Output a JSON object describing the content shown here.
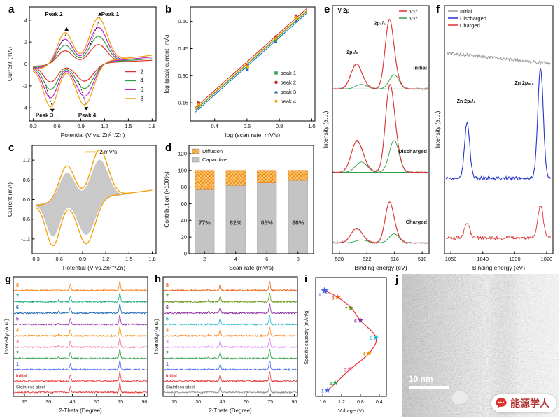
{
  "figure": {
    "background": "#ffffff",
    "watermark": {
      "text": "能源学人",
      "icon_color": "#e03131",
      "text_color": "#b03434"
    }
  },
  "panel_labels": {
    "a": "a",
    "b": "b",
    "c": "c",
    "d": "d",
    "e": "e",
    "f": "f",
    "g": "g",
    "h": "h",
    "i": "i",
    "j": "j"
  },
  "chart_data": [
    {
      "panel": "a",
      "type": "cv",
      "xlabel": "Potential (V vs. Zn²⁺/Zn)",
      "ylabel": "Current (mA)",
      "xlim": [
        0.25,
        1.85
      ],
      "ylim": [
        -5.2,
        5.2
      ],
      "xticks": [
        "0.3",
        "0.6",
        "0.9",
        "1.2",
        "1.5",
        "1.8"
      ],
      "yticks": [
        "-4",
        "-2",
        "0",
        "2",
        "4"
      ],
      "series": [
        {
          "name": "2",
          "color": "#e03131",
          "k": 0.42
        },
        {
          "name": "4",
          "color": "#2f9e44",
          "k": 0.6
        },
        {
          "name": "6",
          "color": "#c026d3",
          "k": 0.79
        },
        {
          "name": "8",
          "color": "#f59f00",
          "k": 1.0
        }
      ],
      "amp": {
        "top": [
          [
            0.7,
            0.1,
            3.0
          ],
          [
            1.12,
            0.11,
            4.0
          ]
        ],
        "bot": [
          [
            0.52,
            0.09,
            3.6
          ],
          [
            0.95,
            0.11,
            3.8
          ]
        ]
      },
      "peak_labels": [
        {
          "text": "Peak 2",
          "x": 0.56,
          "y": 4.55
        },
        {
          "text": "Peak 1",
          "x": 1.27,
          "y": 4.55
        },
        {
          "text": "Peak 3",
          "x": 0.44,
          "y": -4.65
        },
        {
          "text": "Peak 4",
          "x": 0.98,
          "y": -4.65
        }
      ]
    },
    {
      "panel": "b",
      "type": "scatter",
      "xlabel": "log (scan rate, mV/s)",
      "ylabel": "log (peak current, mA)",
      "xlim": [
        0.25,
        1.02
      ],
      "ylim": [
        0.05,
        0.68
      ],
      "xticks": [
        "0.4",
        "0.6",
        "0.8",
        "1.0"
      ],
      "yticks": [
        "0.15",
        "0.30",
        "0.45",
        "0.60"
      ],
      "x": [
        0.301,
        0.602,
        0.778,
        0.903
      ],
      "series": [
        {
          "name": "peak 1",
          "color": "#2f9e44",
          "marker": "square",
          "values": [
            0.135,
            0.345,
            0.5,
            0.615
          ]
        },
        {
          "name": "peak 2",
          "color": "#c92a2a",
          "marker": "circle",
          "values": [
            0.15,
            0.36,
            0.515,
            0.63
          ]
        },
        {
          "name": "peak 3",
          "color": "#1971c2",
          "marker": "triangle",
          "values": [
            0.125,
            0.335,
            0.49,
            0.605
          ]
        },
        {
          "name": "peak 4",
          "color": "#f59f00",
          "marker": "diamond",
          "values": [
            0.14,
            0.35,
            0.505,
            0.62
          ]
        }
      ]
    },
    {
      "panel": "c",
      "type": "cv-fill",
      "xlabel": "Potential (V vs.Zn²⁺/Zn)",
      "ylabel": "Current (mA)",
      "xlim": [
        0.25,
        1.85
      ],
      "ylim": [
        -1.65,
        1.65
      ],
      "xticks": [
        "0.3",
        "0.6",
        "0.9",
        "1.2",
        "1.5",
        "1.8"
      ],
      "yticks": [
        "-1.2",
        "-0.6",
        "0.0",
        "0.6",
        "1.2"
      ],
      "legend": "2 mV/s",
      "line_color": "#f59f00",
      "fill_color": "#c9c9c9",
      "k": 0.36,
      "fill_scale": 0.8,
      "amp": {
        "top": [
          [
            0.7,
            0.1,
            3.0
          ],
          [
            1.12,
            0.11,
            4.0
          ]
        ],
        "bot": [
          [
            0.52,
            0.09,
            3.6
          ],
          [
            0.95,
            0.11,
            3.8
          ]
        ]
      }
    },
    {
      "panel": "d",
      "type": "stacked-bar",
      "xlabel": "Scan rate (mV/s)",
      "ylabel": "Contribution (×100%)",
      "categories": [
        "2",
        "4",
        "6",
        "8"
      ],
      "series": [
        {
          "name": "Diffusion",
          "color": "#f08c00",
          "values": [
            23,
            18,
            15,
            12
          ]
        },
        {
          "name": "Capacitive",
          "color": "#c4c4c4",
          "values": [
            77,
            82,
            85,
            88
          ]
        }
      ],
      "bar_labels": [
        "77%",
        "82%",
        "85%",
        "88%"
      ],
      "ylim": [
        0,
        130
      ],
      "yticks": [
        "0",
        "20",
        "40",
        "60",
        "80",
        "100",
        "120"
      ]
    },
    {
      "panel": "e",
      "type": "xps-v",
      "title": "V 2p",
      "xlabel": "Binding energy (eV)",
      "ylabel": "Intensity (a.u.)",
      "xlim": [
        508.5,
        529.5
      ],
      "xticks": [
        "528",
        "522",
        "516",
        "510"
      ],
      "x_reversed": true,
      "legend": [
        {
          "name": "V⁵⁺",
          "color": "#e03131"
        },
        {
          "name": "V⁴⁺",
          "color": "#2f9e44"
        }
      ],
      "spectra": [
        {
          "name": "Initial",
          "offset": 2.45,
          "main": 0.95,
          "v4": 0.22
        },
        {
          "name": "Discharged",
          "offset": 1.15,
          "main": 1.05,
          "v4": 0.5
        },
        {
          "name": "Charged",
          "offset": 0.05,
          "main": 0.55,
          "v4": 0.14
        }
      ],
      "peak_labels": [
        {
          "text": "2p₁/₂",
          "x": 525.2,
          "y": 3.0
        },
        {
          "text": "2p₃/₂",
          "x": 519.2,
          "y": 3.45
        }
      ]
    },
    {
      "panel": "f",
      "type": "xps-zn",
      "xlabel": "Binding energy (eV)",
      "ylabel": "Intensity (a.u.)",
      "xlim": [
        1018,
        1052
      ],
      "xticks": [
        "1050",
        "1040",
        "1030",
        "1020"
      ],
      "x_reversed": true,
      "traces": [
        {
          "name": "Initial",
          "color": "#9a9a9a",
          "offset": 2.55,
          "p12": 0,
          "p32": 0,
          "slope": 0.0045
        },
        {
          "name": "Discharged",
          "color": "#2333cc",
          "offset": 0.95,
          "p12": 0.78,
          "p32": 1.55,
          "slope": 0
        },
        {
          "name": "Charged",
          "color": "#e03131",
          "offset": 0.12,
          "p12": 0.2,
          "p32": 0.45,
          "slope": 0
        }
      ],
      "peak_labels": [
        {
          "text": "Zn 2p₁/₂",
          "x": 1045.2,
          "y": 2.0
        },
        {
          "text": "Zn 2p₃/₂",
          "x": 1027.0,
          "y": 2.25
        }
      ]
    },
    {
      "panel": "g",
      "type": "xrd",
      "xlabel": "2-Theta (Degree)",
      "ylabel": "Intensity (a.u.)",
      "xlim": [
        8,
        92
      ],
      "xticks": [
        "15",
        "30",
        "45",
        "60",
        "75",
        "90"
      ],
      "peaks": [
        [
          36.4,
          0.12
        ],
        [
          43.7,
          0.5
        ],
        [
          74.6,
          0.8
        ]
      ],
      "traces": [
        {
          "name": "Stainless steel",
          "color": "#e03131",
          "label_color": "#555555"
        },
        {
          "name": "Initial",
          "color": "#f03e3e",
          "label_color": "#e03131"
        },
        {
          "name": "1",
          "color": "#4263eb"
        },
        {
          "name": "2",
          "color": "#2f9e44"
        },
        {
          "name": "3",
          "color": "#f06595"
        },
        {
          "name": "4",
          "color": "#f08c00"
        },
        {
          "name": "5",
          "color": "#9c36b5"
        },
        {
          "name": "6",
          "color": "#1864ab"
        },
        {
          "name": "7",
          "color": "#0ca678"
        },
        {
          "name": "8",
          "color": "#fd7e14"
        }
      ]
    },
    {
      "panel": "h",
      "type": "xrd",
      "xlabel": "2-Theta (Degree)",
      "ylabel": "Intensity (a.u.)",
      "xlim": [
        8,
        92
      ],
      "xticks": [
        "15",
        "30",
        "45",
        "60",
        "75",
        "90"
      ],
      "peaks": [
        [
          36.4,
          0.1
        ],
        [
          43.7,
          0.5
        ],
        [
          74.6,
          0.8
        ]
      ],
      "traces": [
        {
          "name": "Stainless steel",
          "color": "#8a8a8a",
          "label_color": "#555555"
        },
        {
          "name": "Initial",
          "color": "#e03131",
          "label_color": "#e03131"
        },
        {
          "name": "1",
          "color": "#4263eb"
        },
        {
          "name": "2",
          "color": "#2f9e44"
        },
        {
          "name": "3",
          "color": "#da77f2"
        },
        {
          "name": "4",
          "color": "#fd7e14"
        },
        {
          "name": "5",
          "color": "#22b8cf"
        },
        {
          "name": "6",
          "color": "#862e9c"
        },
        {
          "name": "7",
          "color": "#5c940d"
        },
        {
          "name": "8",
          "color": "#e8590c"
        }
      ]
    },
    {
      "panel": "i",
      "type": "capacity-path",
      "xlabel": "Voltage (V)",
      "ylabel": "Specific capacity (mAh/g)",
      "xlim": [
        0.25,
        1.75
      ],
      "xticks": [
        "1.6",
        "1.2",
        "0.8",
        "0.4"
      ],
      "x_reversed": true,
      "ylim": [
        0,
        360
      ],
      "line_color": "#e03131",
      "points": [
        {
          "label": "1",
          "v": 1.5,
          "cap": 18,
          "color": "#4263eb"
        },
        {
          "label": "2",
          "v": 1.33,
          "cap": 40,
          "color": "#2f9e44"
        },
        {
          "label": "3",
          "v": 1.02,
          "cap": 82,
          "color": "#f06595"
        },
        {
          "label": "4",
          "v": 0.62,
          "cap": 130,
          "color": "#f08c00"
        },
        {
          "label": "5",
          "v": 0.47,
          "cap": 178,
          "color": "#22b8cf"
        },
        {
          "label": "6",
          "v": 0.8,
          "cap": 230,
          "color": "#862e9c"
        },
        {
          "label": "7",
          "v": 1.0,
          "cap": 268,
          "color": "#5c940d"
        },
        {
          "label": "8",
          "v": 1.28,
          "cap": 300,
          "color": "#e8590c"
        },
        {
          "label": "1",
          "v": 1.56,
          "cap": 320,
          "color": "#4263eb",
          "big": true
        }
      ]
    },
    {
      "panel": "j",
      "type": "tem",
      "scalebar": "10 nm"
    }
  ]
}
